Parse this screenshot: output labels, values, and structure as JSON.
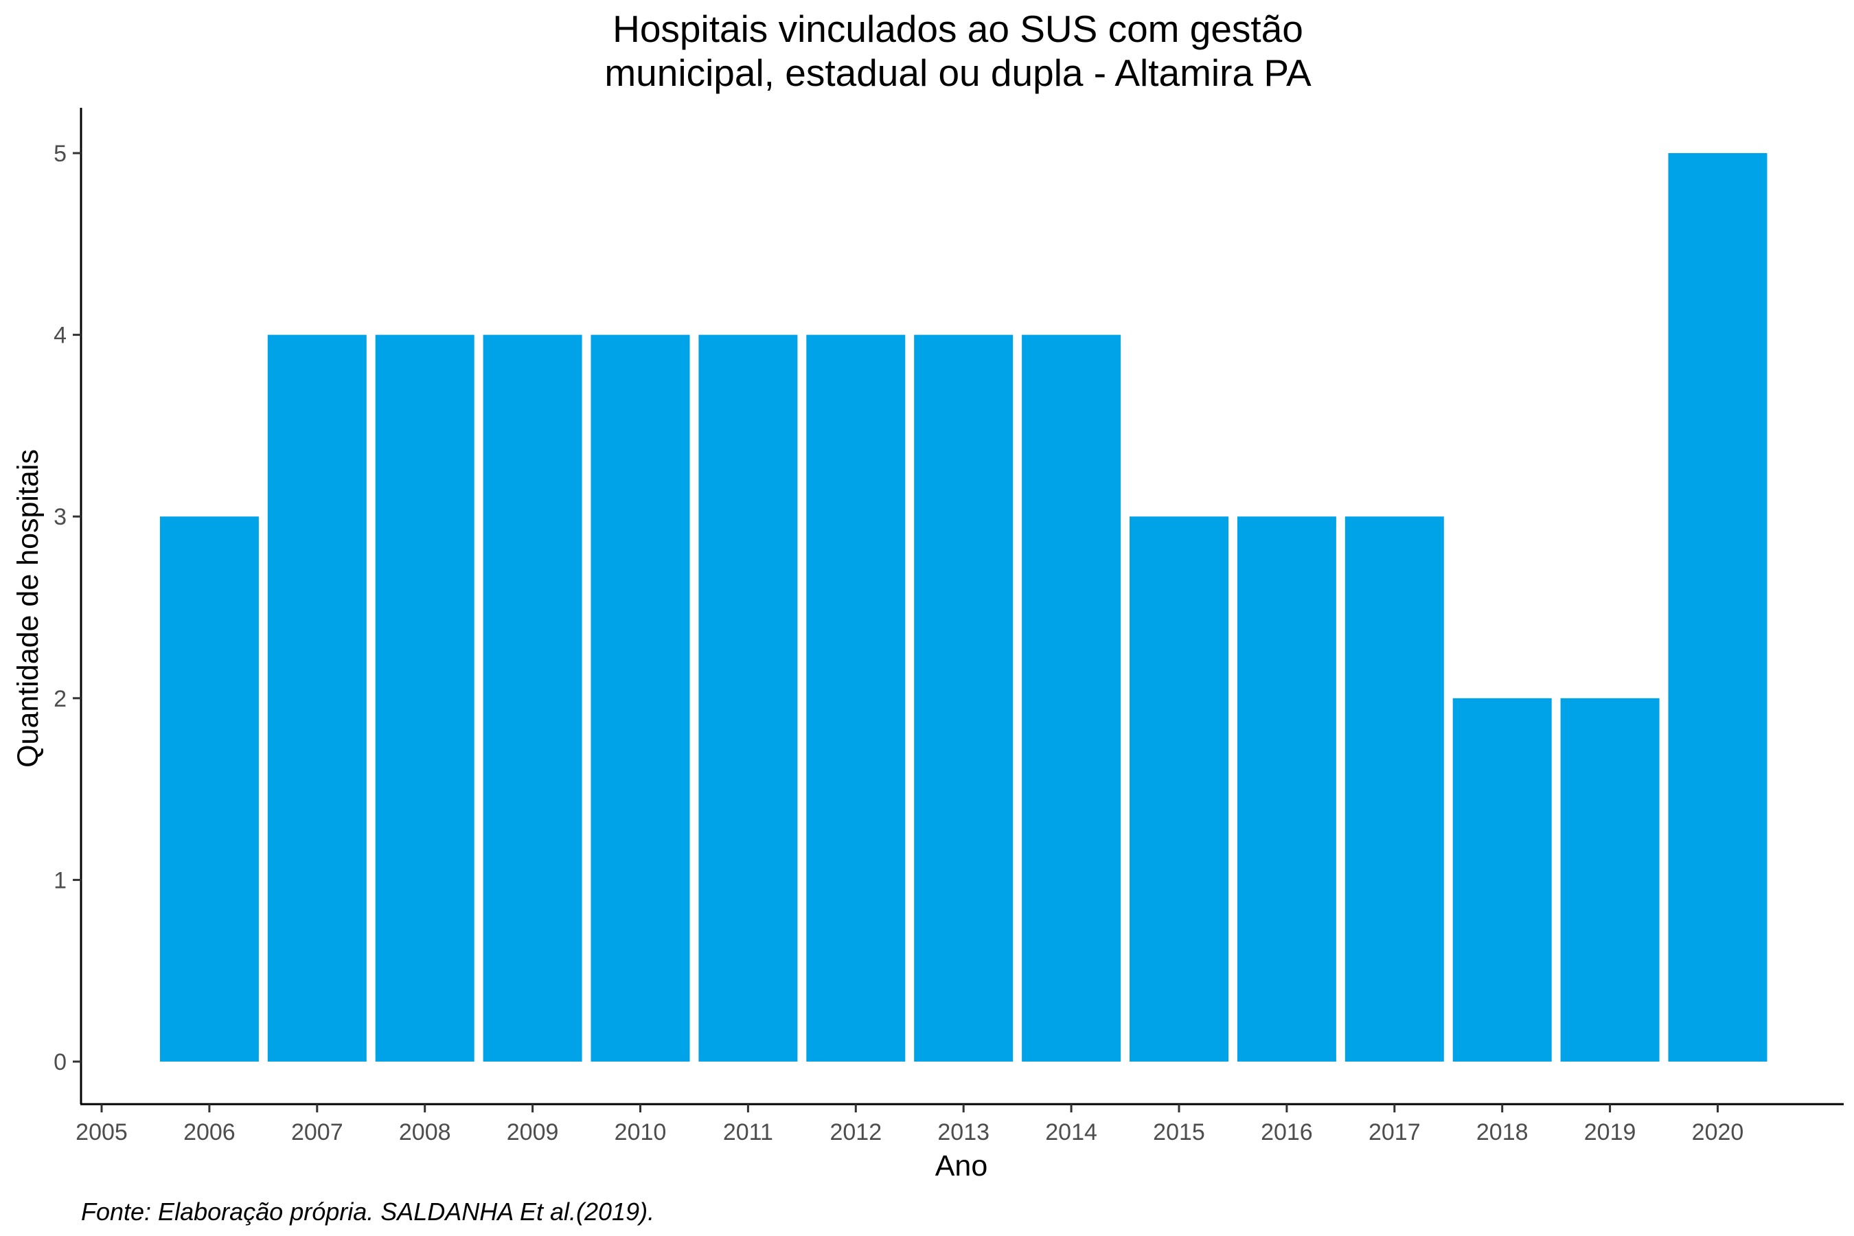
{
  "chart_data": {
    "type": "bar",
    "title_lines": [
      "Hospitais vinculados ao SUS com gestão",
      "municipal, estadual ou dupla -  Altamira PA"
    ],
    "xlabel": "Ano",
    "ylabel": "Quantidade de hospitais",
    "x_ticks": [
      "2005",
      "2006",
      "2007",
      "2008",
      "2009",
      "2010",
      "2011",
      "2012",
      "2013",
      "2014",
      "2015",
      "2016",
      "2017",
      "2018",
      "2019",
      "2020"
    ],
    "y_ticks": [
      "0",
      "1",
      "2",
      "3",
      "4",
      "5"
    ],
    "categories": [
      "2006",
      "2007",
      "2008",
      "2009",
      "2010",
      "2011",
      "2012",
      "2013",
      "2014",
      "2015",
      "2016",
      "2017",
      "2018",
      "2019",
      "2020"
    ],
    "values": [
      3,
      4,
      4,
      4,
      4,
      4,
      4,
      4,
      4,
      3,
      3,
      3,
      2,
      2,
      5
    ],
    "ylim": [
      0,
      5
    ],
    "xlim": [
      2005,
      2020
    ],
    "bar_color": "#00A2E8",
    "grid": false,
    "legend": "none"
  },
  "caption": "Fonte: Elaboração própria. SALDANHA Et al.(2019)."
}
